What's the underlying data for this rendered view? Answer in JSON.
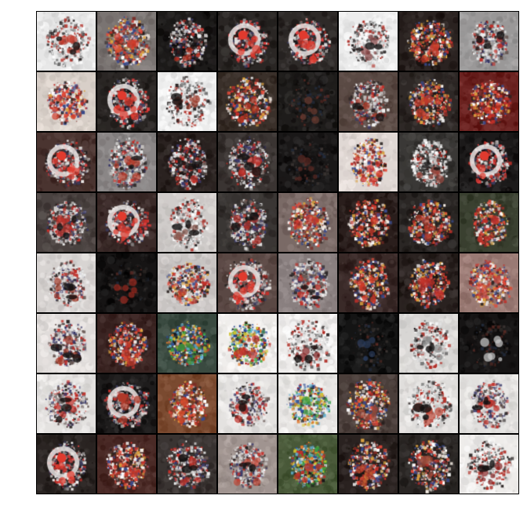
{
  "figure": {
    "grid": {
      "rows": 8,
      "cols": 8
    },
    "tiles": [
      {
        "bg": "#e6e6e6",
        "face": "light",
        "accent": "#c0392b"
      },
      {
        "bg": "#7a7472",
        "face": "dense",
        "accent": "#d23a2a"
      },
      {
        "bg": "#1c1a19",
        "face": "mixed",
        "accent": "#b03020"
      },
      {
        "bg": "#2a2624",
        "face": "ring",
        "accent": "#e03a2e"
      },
      {
        "bg": "#2e2a28",
        "face": "ring",
        "accent": "#e03a2e"
      },
      {
        "bg": "#ececec",
        "face": "light",
        "accent": "#8a4a4a"
      },
      {
        "bg": "#2a2220",
        "face": "dense",
        "accent": "#c43a2a"
      },
      {
        "bg": "#9a9898",
        "face": "mixed",
        "accent": "#c0302a"
      },
      {
        "bg": "#d8cfc8",
        "face": "dense",
        "accent": "#d04030"
      },
      {
        "bg": "#2a2624",
        "face": "ring",
        "accent": "#e03a2e"
      },
      {
        "bg": "#ececec",
        "face": "light",
        "accent": "#9a3a2a"
      },
      {
        "bg": "#3a302a",
        "face": "dense",
        "accent": "#b23424"
      },
      {
        "bg": "#1e1c1b",
        "face": "dark",
        "accent": "#6a3a30"
      },
      {
        "bg": "#5a4a44",
        "face": "mixed",
        "accent": "#b03a2a"
      },
      {
        "bg": "#2e2826",
        "face": "dense",
        "accent": "#c43a2a"
      },
      {
        "bg": "#6a2220",
        "face": "dense",
        "accent": "#d23020"
      },
      {
        "bg": "#4a3430",
        "face": "ring",
        "accent": "#e03a2e"
      },
      {
        "bg": "#8a8686",
        "face": "mixed",
        "accent": "#b03a2a"
      },
      {
        "bg": "#2a2220",
        "face": "mixed",
        "accent": "#c0302a"
      },
      {
        "bg": "#3a3432",
        "face": "mixed",
        "accent": "#c0302a"
      },
      {
        "bg": "#1a1818",
        "face": "dark",
        "accent": "#5a2a24"
      },
      {
        "bg": "#e0d8d4",
        "face": "dense",
        "accent": "#d0302a"
      },
      {
        "bg": "#3a3836",
        "face": "light",
        "accent": "#9a4a40"
      },
      {
        "bg": "#1c1a1a",
        "face": "ring",
        "accent": "#e03a2e"
      },
      {
        "bg": "#4a4240",
        "face": "mixed",
        "accent": "#c0302a"
      },
      {
        "bg": "#3a2a28",
        "face": "ring",
        "accent": "#e03a2e"
      },
      {
        "bg": "#d0ccca",
        "face": "light",
        "accent": "#8a5a50"
      },
      {
        "bg": "#3a3634",
        "face": "mixed",
        "accent": "#b0302a"
      },
      {
        "bg": "#7a6a66",
        "face": "dense",
        "accent": "#c0302a"
      },
      {
        "bg": "#2a1e1c",
        "face": "dense",
        "accent": "#d23a2a"
      },
      {
        "bg": "#2a2624",
        "face": "dense",
        "accent": "#b03a2a"
      },
      {
        "bg": "#3a4030",
        "face": "dense",
        "accent": "#c0302a"
      },
      {
        "bg": "#d8d4d2",
        "face": "mixed",
        "accent": "#a03a2a"
      },
      {
        "bg": "#161414",
        "face": "dark",
        "accent": "#9a2a20"
      },
      {
        "bg": "#c8c4c2",
        "face": "dense",
        "accent": "#b03a2a"
      },
      {
        "bg": "#5a4844",
        "face": "ring",
        "accent": "#e03a2e"
      },
      {
        "bg": "#8a8080",
        "face": "mixed",
        "accent": "#c0302a"
      },
      {
        "bg": "#3a2a28",
        "face": "dense",
        "accent": "#d03a2a"
      },
      {
        "bg": "#2a2220",
        "face": "dense",
        "accent": "#c0302a"
      },
      {
        "bg": "#9a7a74",
        "face": "dense",
        "accent": "#d24a3a"
      },
      {
        "bg": "#e0dcda",
        "face": "mixed",
        "accent": "#a03a2a"
      },
      {
        "bg": "#3a2422",
        "face": "dense",
        "accent": "#d03a2a"
      },
      {
        "bg": "#3a4a40",
        "face": "colorful",
        "accent": "#3a8a3a"
      },
      {
        "bg": "#f0eeec",
        "face": "colorful",
        "accent": "#c0302a"
      },
      {
        "bg": "#eeeceb",
        "face": "light",
        "accent": "#8a2a2a"
      },
      {
        "bg": "#141414",
        "face": "dark",
        "accent": "#2a3a5a"
      },
      {
        "bg": "#d8d6d4",
        "face": "light",
        "accent": "#8a8a8a"
      },
      {
        "bg": "#161414",
        "face": "dark",
        "accent": "#cccccc"
      },
      {
        "bg": "#e4e2e0",
        "face": "mixed",
        "accent": "#c0302a"
      },
      {
        "bg": "#1e1c1c",
        "face": "ring",
        "accent": "#b03a2a"
      },
      {
        "bg": "#7a4a30",
        "face": "dense",
        "accent": "#d04a2a"
      },
      {
        "bg": "#e4e2e0",
        "face": "mixed",
        "accent": "#c0302a"
      },
      {
        "bg": "#e8e6e4",
        "face": "colorful",
        "accent": "#3a9a3a"
      },
      {
        "bg": "#4a3e3a",
        "face": "dense",
        "accent": "#9a4a3a"
      },
      {
        "bg": "#e0dedc",
        "face": "light",
        "accent": "#c04a3a"
      },
      {
        "bg": "#e2e0de",
        "face": "mixed",
        "accent": "#c0302a"
      },
      {
        "bg": "#2a2422",
        "face": "ring",
        "accent": "#e03a2e"
      },
      {
        "bg": "#4a2a26",
        "face": "dense",
        "accent": "#d03a2a"
      },
      {
        "bg": "#3a3432",
        "face": "mixed",
        "accent": "#c0302a"
      },
      {
        "bg": "#a09490",
        "face": "mixed",
        "accent": "#c04a3a"
      },
      {
        "bg": "#4a5a3a",
        "face": "colorful",
        "accent": "#c0302a"
      },
      {
        "bg": "#2a2220",
        "face": "dense",
        "accent": "#b03a2a"
      },
      {
        "bg": "#2a2624",
        "face": "dense",
        "accent": "#9a4a3a"
      },
      {
        "bg": "#eeecea",
        "face": "light",
        "accent": "#8a2a2a"
      }
    ]
  }
}
